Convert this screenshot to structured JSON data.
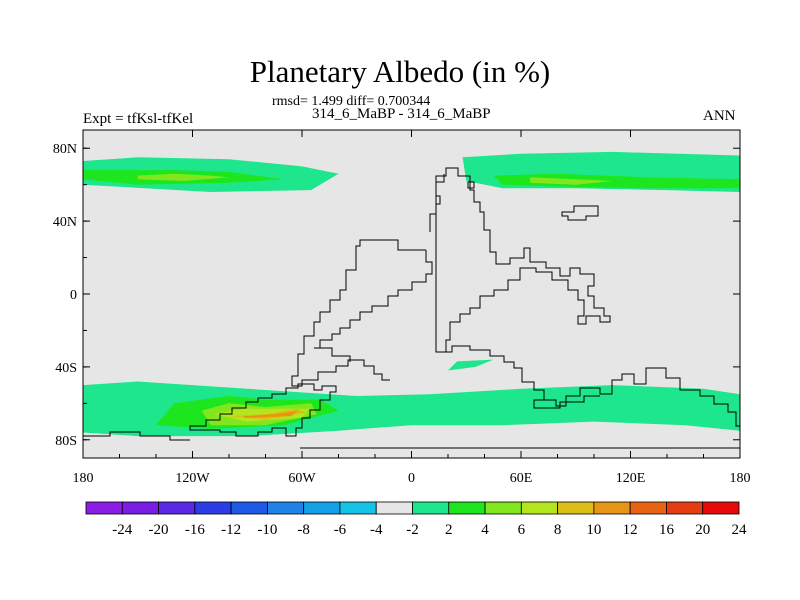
{
  "chart_data": {
    "type": "heatmap",
    "title": "Planetary Albedo (in %)",
    "stats": "rmsd= 1.499 diff= 0.700344",
    "experiment": "314_6_MaBP - 314_6_MaBP",
    "left_label": "Expt = tfKsl-tfKel",
    "right_label": "ANN",
    "projection": "cylindrical-equidistant",
    "xlim": [
      -180,
      180
    ],
    "ylim": [
      -90,
      90
    ],
    "x_ticks": [
      {
        "value": -180,
        "label": "180"
      },
      {
        "value": -120,
        "label": "120W"
      },
      {
        "value": -60,
        "label": "60W"
      },
      {
        "value": 0,
        "label": "0"
      },
      {
        "value": 60,
        "label": "60E"
      },
      {
        "value": 120,
        "label": "120E"
      },
      {
        "value": 180,
        "label": "180"
      }
    ],
    "y_ticks": [
      {
        "value": 80,
        "label": "80N"
      },
      {
        "value": 40,
        "label": "40N"
      },
      {
        "value": 0,
        "label": "0"
      },
      {
        "value": -40,
        "label": "40S"
      },
      {
        "value": -80,
        "label": "80S"
      }
    ],
    "colorbar": {
      "orientation": "horizontal",
      "placement": "bottom",
      "levels": [
        "-24",
        "-20",
        "-16",
        "-12",
        "-10",
        "-8",
        "-6",
        "-4",
        "-2",
        "2",
        "4",
        "6",
        "8",
        "10",
        "12",
        "16",
        "20",
        "24"
      ],
      "colors": [
        "#8c1ee6",
        "#7a1ee6",
        "#5a28e6",
        "#2c3ce6",
        "#1e5ae6",
        "#1e82e6",
        "#14a0e6",
        "#14c3e6",
        "#e6e6e6",
        "#1ee68c",
        "#1ee61e",
        "#82e61e",
        "#b4e61e",
        "#dcbe14",
        "#e69614",
        "#e66414",
        "#e63c14",
        "#e60a0a"
      ]
    },
    "background_color": "#e6e6e6",
    "coastline_color": "#000000",
    "contour_regions": [
      {
        "level_range": "2 to 4",
        "color": "#1ee68c",
        "description_points": [
          [
            -180,
            73
          ],
          [
            -150,
            75
          ],
          [
            -100,
            74
          ],
          [
            -60,
            70
          ],
          [
            -40,
            66
          ],
          [
            -55,
            57
          ],
          [
            -110,
            56
          ],
          [
            -180,
            60
          ],
          [
            -180,
            73
          ]
        ]
      },
      {
        "level_range": "4 to 6",
        "color": "#1ee61e",
        "description_points": [
          [
            -180,
            68
          ],
          [
            -130,
            68
          ],
          [
            -100,
            67
          ],
          [
            -70,
            63
          ],
          [
            -100,
            61
          ],
          [
            -150,
            60
          ],
          [
            -180,
            63
          ],
          [
            -180,
            68
          ]
        ]
      },
      {
        "level_range": "6 to 8",
        "color": "#82e61e",
        "description_points": [
          [
            -150,
            65
          ],
          [
            -130,
            66
          ],
          [
            -110,
            65
          ],
          [
            -100,
            64
          ],
          [
            -125,
            62
          ],
          [
            -150,
            63
          ],
          [
            -150,
            65
          ]
        ]
      },
      {
        "level_range": "2 to 4",
        "color": "#1ee68c",
        "description_points": [
          [
            28,
            75
          ],
          [
            60,
            77
          ],
          [
            110,
            78
          ],
          [
            180,
            76
          ],
          [
            180,
            56
          ],
          [
            140,
            57
          ],
          [
            90,
            58
          ],
          [
            50,
            58
          ],
          [
            30,
            62
          ],
          [
            28,
            75
          ]
        ]
      },
      {
        "level_range": "4 to 6",
        "color": "#1ee61e",
        "description_points": [
          [
            45,
            65
          ],
          [
            80,
            66
          ],
          [
            130,
            64
          ],
          [
            180,
            63
          ],
          [
            180,
            58
          ],
          [
            130,
            58
          ],
          [
            80,
            59
          ],
          [
            50,
            60
          ],
          [
            45,
            65
          ]
        ]
      },
      {
        "level_range": "6 to 8",
        "color": "#82e61e",
        "description_points": [
          [
            65,
            64
          ],
          [
            90,
            63
          ],
          [
            110,
            62
          ],
          [
            90,
            60
          ],
          [
            65,
            61
          ],
          [
            65,
            64
          ]
        ]
      },
      {
        "level_range": "2 to 4",
        "color": "#1ee68c",
        "description_points": [
          [
            -180,
            -50
          ],
          [
            -150,
            -48
          ],
          [
            -90,
            -52
          ],
          [
            -30,
            -56
          ],
          [
            10,
            -55
          ],
          [
            60,
            -52
          ],
          [
            110,
            -50
          ],
          [
            160,
            -52
          ],
          [
            180,
            -55
          ],
          [
            180,
            -75
          ],
          [
            150,
            -72
          ],
          [
            100,
            -70
          ],
          [
            50,
            -72
          ],
          [
            0,
            -72
          ],
          [
            -40,
            -75
          ],
          [
            -90,
            -78
          ],
          [
            -150,
            -78
          ],
          [
            -180,
            -76
          ],
          [
            -180,
            -50
          ]
        ]
      },
      {
        "level_range": "4 to 6",
        "color": "#1ee61e",
        "description_points": [
          [
            -130,
            -60
          ],
          [
            -100,
            -56
          ],
          [
            -80,
            -58
          ],
          [
            -50,
            -58
          ],
          [
            -40,
            -64
          ],
          [
            -70,
            -72
          ],
          [
            -110,
            -74
          ],
          [
            -140,
            -72
          ],
          [
            -130,
            -60
          ]
        ]
      },
      {
        "level_range": "6 to 8",
        "color": "#82e61e",
        "description_points": [
          [
            -115,
            -64
          ],
          [
            -100,
            -60
          ],
          [
            -80,
            -62
          ],
          [
            -55,
            -60
          ],
          [
            -52,
            -66
          ],
          [
            -80,
            -72
          ],
          [
            -110,
            -72
          ],
          [
            -115,
            -64
          ]
        ]
      },
      {
        "level_range": "8 to 10",
        "color": "#b4e61e",
        "description_points": [
          [
            -108,
            -66
          ],
          [
            -92,
            -63
          ],
          [
            -70,
            -63
          ],
          [
            -56,
            -63
          ],
          [
            -60,
            -68
          ],
          [
            -90,
            -70
          ],
          [
            -108,
            -66
          ]
        ]
      },
      {
        "level_range": "10 to 12",
        "color": "#dcbe14",
        "description_points": [
          [
            -100,
            -67
          ],
          [
            -80,
            -66
          ],
          [
            -63,
            -63
          ],
          [
            -58,
            -65
          ],
          [
            -80,
            -69
          ],
          [
            -100,
            -67
          ]
        ]
      },
      {
        "level_range": "12 to 16",
        "color": "#e69614",
        "description_points": [
          [
            -92,
            -67
          ],
          [
            -75,
            -66
          ],
          [
            -62,
            -64
          ],
          [
            -66,
            -67
          ],
          [
            -92,
            -68
          ]
        ]
      },
      {
        "level_range": "2 to 4",
        "color": "#1ee68c",
        "description_points": [
          [
            25,
            -37
          ],
          [
            45,
            -36
          ],
          [
            35,
            -40
          ],
          [
            20,
            -42
          ],
          [
            25,
            -37
          ]
        ]
      }
    ]
  }
}
